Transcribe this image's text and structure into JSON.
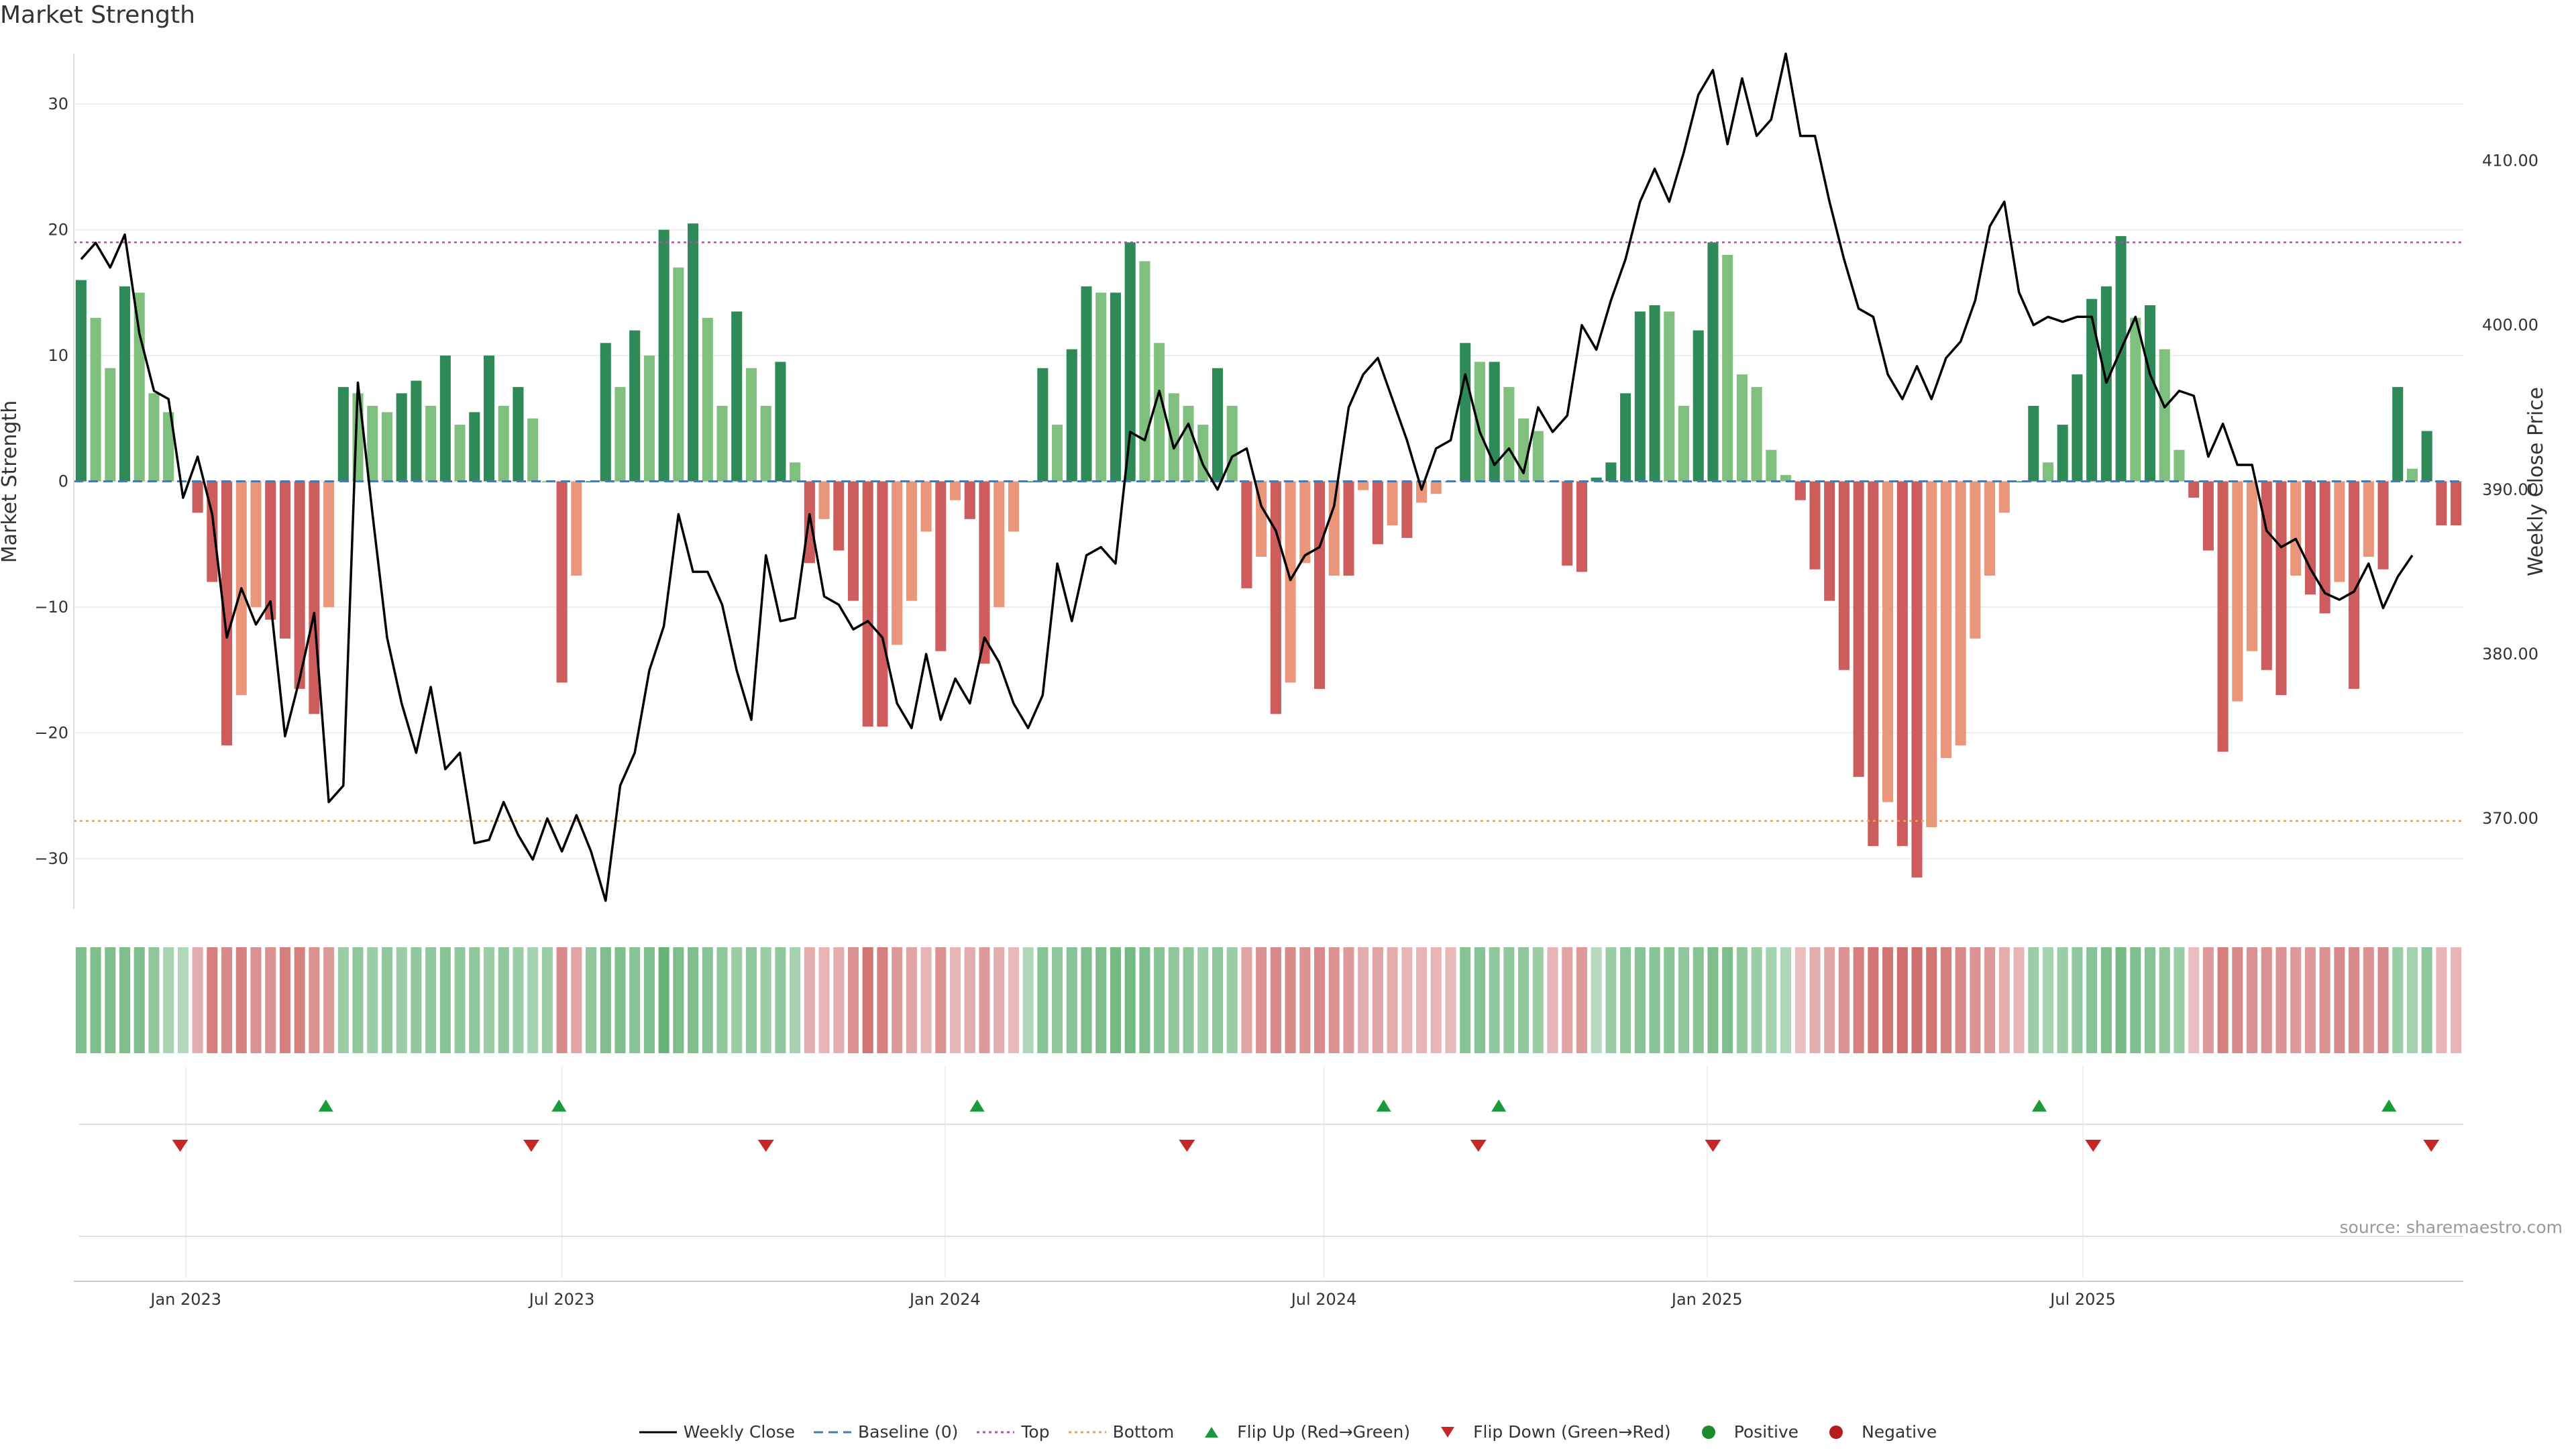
{
  "title": "Market Strength",
  "source_text": "source: sharemaestro.com",
  "colors": {
    "strong_green": "#2e8b57",
    "light_green": "#7fc07f",
    "strong_red": "#cd5c5c",
    "light_red": "#e9967a",
    "price_line": "#000000",
    "baseline": "#4a7ab0",
    "top_line": "#b04fb0",
    "bottom_line": "#e8a060",
    "flip_up": "#1a9a3a",
    "flip_down": "#c62828"
  },
  "chart_data": {
    "type": "bar",
    "title": "Market Strength",
    "ylabel": "Market Strength",
    "y2label": "Weekly Close Price",
    "ylim": [
      -34,
      34
    ],
    "y_ticks": [
      30,
      20,
      10,
      0,
      -10,
      -20,
      -30
    ],
    "y_tick_labels": [
      "30",
      "20",
      "10",
      "0",
      "−10",
      "−20",
      "−30"
    ],
    "y2lim": [
      364.5,
      416.5
    ],
    "y2_ticks": [
      410,
      400,
      390,
      380,
      370
    ],
    "y2_tick_labels": [
      "410.00",
      "400.00",
      "390.00",
      "380.00",
      "370.00"
    ],
    "x_ticks": [
      {
        "week": 7.7,
        "label": "Jan 2023"
      },
      {
        "week": 33.5,
        "label": "Jul 2023"
      },
      {
        "week": 59.8,
        "label": "Jan 2024"
      },
      {
        "week": 85.8,
        "label": "Jul 2024"
      },
      {
        "week": 112.1,
        "label": "Jan 2025"
      },
      {
        "week": 137.9,
        "label": "Jul 2025"
      }
    ],
    "top_level": 19,
    "bottom_level": -27,
    "strength": [
      16,
      13,
      9,
      15.5,
      15,
      7,
      5.5,
      0,
      -2.5,
      -8,
      -21,
      -17,
      -10,
      -11,
      -12.5,
      -16.5,
      -18.5,
      -10,
      7.5,
      7,
      6,
      5.5,
      7,
      8,
      6,
      10,
      4.5,
      5.5,
      10,
      6,
      7.5,
      5,
      0,
      -16,
      -7.5,
      0,
      11,
      7.5,
      12,
      10,
      20,
      17,
      20.5,
      13,
      6,
      13.5,
      9,
      6,
      9.5,
      1.5,
      -6.5,
      -3,
      -5.5,
      -9.5,
      -19.5,
      -19.5,
      -13,
      -9.5,
      -4,
      -13.5,
      -1.5,
      -3,
      -14.5,
      -10,
      -4,
      0,
      9,
      4.5,
      10.5,
      15.5,
      15,
      15,
      19,
      17.5,
      11,
      7,
      6,
      4.5,
      9,
      6,
      -8.5,
      -6,
      -18.5,
      -16,
      -6.5,
      -16.5,
      -7.5,
      -7.5,
      -0.7,
      -5,
      -3.5,
      -4.5,
      -1.7,
      -1,
      0,
      11,
      9.5,
      9.5,
      7.5,
      5,
      4,
      0,
      -6.7,
      -7.2,
      0.3,
      1.5,
      7,
      13.5,
      14,
      13.5,
      6,
      12,
      19,
      18,
      8.5,
      7.5,
      2.5,
      0.5,
      -1.5,
      -7,
      -9.5,
      -15,
      -23.5,
      -29,
      -25.5,
      -29,
      -31.5,
      -27.5,
      -22,
      -21,
      -12.5,
      -7.5,
      -2.5,
      0,
      6,
      1.5,
      4.5,
      8.5,
      14.5,
      15.5,
      19.5,
      13,
      14,
      10.5,
      2.5,
      -1.3,
      -5.5,
      -21.5,
      -17.5,
      -13.5,
      -15,
      -17,
      -7.5,
      -9,
      -10.5,
      -8,
      -16.5,
      -6,
      -7,
      7.5,
      1,
      4,
      -3.5,
      -3.5
    ],
    "price": [
      404,
      405,
      403.5,
      405.5,
      399.5,
      396,
      395.5,
      389.5,
      392,
      388.5,
      381,
      384,
      381.8,
      383.2,
      375,
      378.5,
      382.5,
      371,
      372,
      396.5,
      388.5,
      381,
      377,
      374,
      378,
      373,
      374,
      368.5,
      368.7,
      371,
      369,
      367.5,
      370,
      368,
      370.2,
      368,
      365,
      372,
      374,
      379,
      381.7,
      388.5,
      385,
      385,
      383,
      379,
      376,
      386,
      382,
      382.2,
      388.5,
      383.5,
      383,
      381.5,
      382,
      381,
      377,
      375.5,
      380,
      376,
      378.5,
      377,
      381,
      379.5,
      377,
      375.5,
      377.5,
      385.5,
      382,
      386,
      386.5,
      385.5,
      393.5,
      393,
      396,
      392.5,
      394,
      391.5,
      390,
      392,
      392.5,
      389,
      387.5,
      384.5,
      386,
      386.5,
      389,
      395,
      397,
      398,
      395.5,
      393,
      390,
      392.5,
      393,
      397,
      393.5,
      391.5,
      392.5,
      391,
      395,
      393.5,
      394.5,
      400,
      398.5,
      401.5,
      404,
      407.5,
      409.5,
      407.5,
      410.5,
      414,
      415.5,
      411,
      415,
      411.5,
      412.5,
      416.5,
      411.5,
      411.5,
      407.5,
      404,
      401,
      400.5,
      397,
      395.5,
      397.5,
      395.5,
      398,
      399,
      401.5,
      406,
      407.5,
      402,
      400,
      400.5,
      400.2,
      400.5,
      400.5,
      396.5,
      398.5,
      400.5,
      397,
      395,
      396,
      395.7,
      392,
      394,
      391.5,
      391.5,
      387.5,
      386.5,
      387,
      385.2,
      383.7,
      383.3,
      383.8,
      385.5,
      382.8,
      384.7,
      386
    ],
    "heat_strip": [
      0.45,
      0.45,
      0.45,
      0.45,
      0.45,
      0.35,
      0.22,
      0.18,
      -0.25,
      -0.5,
      -0.45,
      -0.5,
      -0.4,
      -0.4,
      -0.5,
      -0.5,
      -0.4,
      -0.35,
      0.3,
      0.35,
      0.3,
      0.35,
      0.3,
      0.35,
      0.35,
      0.4,
      0.35,
      0.35,
      0.3,
      0.35,
      0.3,
      0.25,
      0.3,
      -0.45,
      -0.3,
      0.35,
      0.45,
      0.45,
      0.4,
      0.45,
      0.55,
      0.45,
      0.45,
      0.4,
      0.35,
      0.3,
      0.35,
      0.3,
      0.35,
      0.25,
      -0.25,
      -0.2,
      -0.25,
      -0.4,
      -0.55,
      -0.5,
      -0.35,
      -0.3,
      -0.2,
      -0.4,
      -0.2,
      -0.25,
      -0.35,
      -0.25,
      -0.18,
      0.2,
      0.4,
      0.35,
      0.4,
      0.45,
      0.45,
      0.5,
      0.5,
      0.45,
      0.4,
      0.35,
      0.35,
      0.3,
      0.35,
      0.3,
      -0.3,
      -0.4,
      -0.45,
      -0.45,
      -0.4,
      -0.45,
      -0.4,
      -0.35,
      -0.25,
      -0.3,
      -0.25,
      -0.2,
      -0.2,
      -0.2,
      -0.18,
      0.4,
      0.4,
      0.35,
      0.35,
      0.35,
      0.3,
      -0.2,
      -0.3,
      -0.35,
      0.15,
      0.3,
      0.35,
      0.4,
      0.4,
      0.4,
      0.35,
      0.4,
      0.45,
      0.45,
      0.35,
      0.3,
      0.25,
      0.2,
      -0.15,
      -0.25,
      -0.3,
      -0.4,
      -0.5,
      -0.55,
      -0.55,
      -0.6,
      -0.6,
      -0.55,
      -0.5,
      -0.45,
      -0.4,
      -0.35,
      -0.25,
      -0.2,
      0.3,
      0.25,
      0.3,
      0.35,
      0.4,
      0.45,
      0.5,
      0.45,
      0.4,
      0.35,
      0.3,
      -0.15,
      -0.35,
      -0.5,
      -0.45,
      -0.4,
      -0.4,
      -0.4,
      -0.35,
      -0.35,
      -0.4,
      -0.45,
      -0.45,
      -0.4,
      -0.45,
      0.3,
      0.25,
      0.35,
      -0.2,
      -0.2
    ],
    "flip_up_weeks": [
      17.3,
      33.3,
      62,
      89.9,
      97.8,
      134.9,
      158.9
    ],
    "flip_down_weeks": [
      7.3,
      31.4,
      47.5,
      76.4,
      96.4,
      112.5,
      138.6,
      161.8
    ],
    "legend": [
      {
        "label": "Weekly Close",
        "kind": "line",
        "color": "#000000"
      },
      {
        "label": "Baseline (0)",
        "kind": "dash",
        "color": "#4a7ab0"
      },
      {
        "label": "Top",
        "kind": "dot",
        "color": "#b04fb0"
      },
      {
        "label": "Bottom",
        "kind": "dot",
        "color": "#e8a060"
      },
      {
        "label": "Flip Up (Red→Green)",
        "kind": "up",
        "color": "#1a9a3a"
      },
      {
        "label": "Flip Down (Green→Red)",
        "kind": "down",
        "color": "#c62828"
      },
      {
        "label": "Positive",
        "kind": "circle",
        "color": "#1e8c2e"
      },
      {
        "label": "Negative",
        "kind": "circle",
        "color": "#b71c1c"
      }
    ]
  }
}
